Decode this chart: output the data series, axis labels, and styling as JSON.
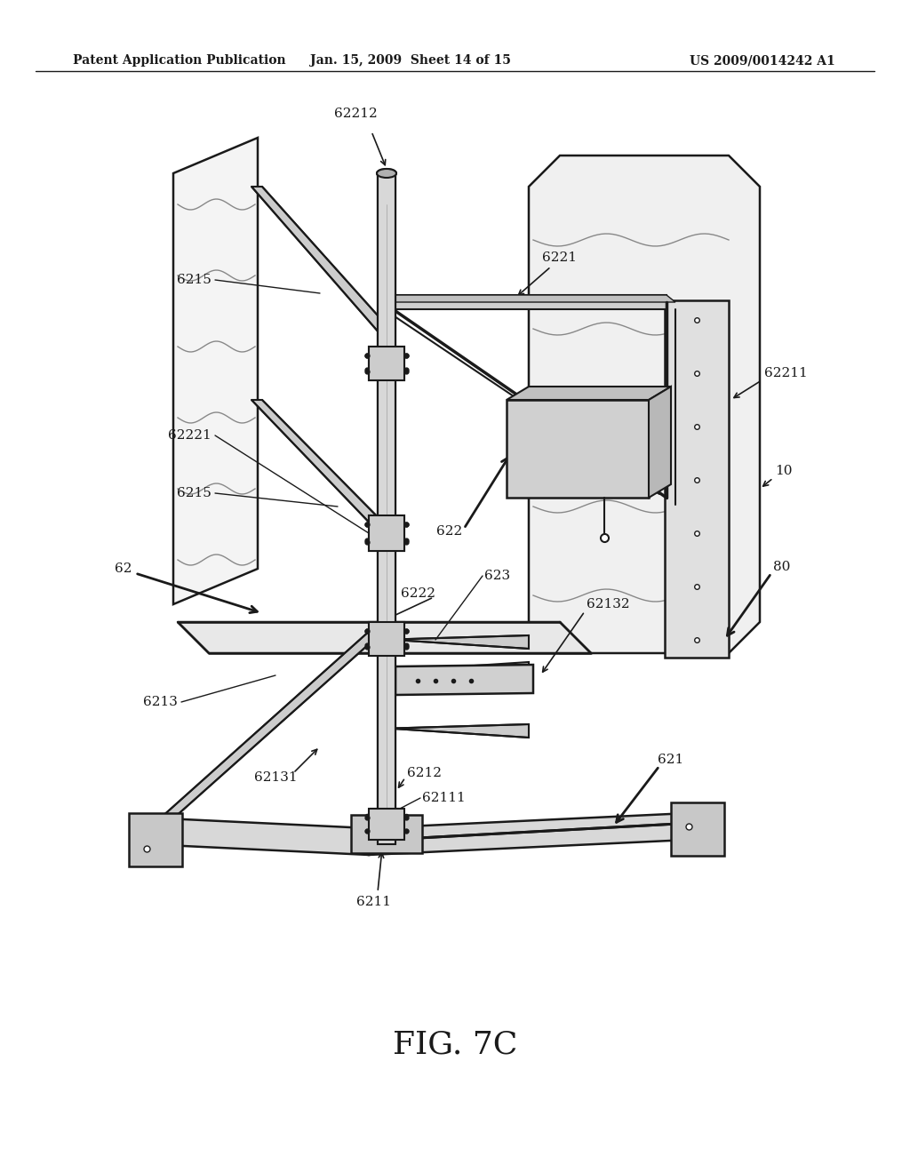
{
  "background_color": "#ffffff",
  "header_left": "Patent Application Publication",
  "header_middle": "Jan. 15, 2009  Sheet 14 of 15",
  "header_right": "US 2009/0014242 A1",
  "figure_label": "FIG. 7C",
  "line_color": "#1a1a1a",
  "fig_width": 10.24,
  "fig_height": 13.2,
  "dpi": 100
}
